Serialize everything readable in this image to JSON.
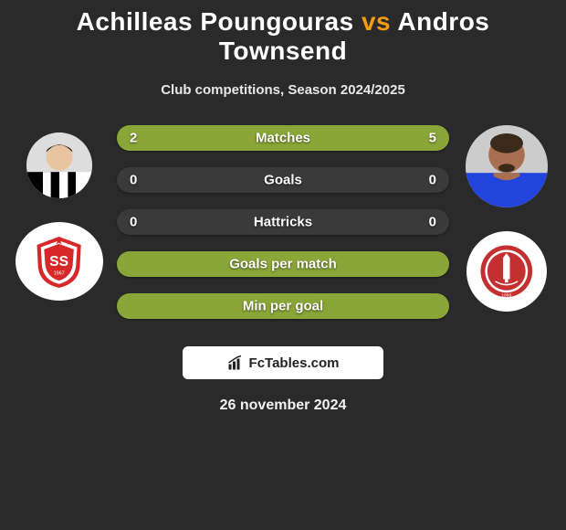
{
  "title": {
    "player1": "Achilleas Poungouras",
    "vs": "vs",
    "player2": "Andros Townsend"
  },
  "subtitle": "Club competitions, Season 2024/2025",
  "colors": {
    "background": "#2a2a2a",
    "bar_track": "#3a3a3a",
    "bar_fill": "#8aa638",
    "accent": "#f39c12",
    "text": "#ffffff",
    "brand_bg": "#ffffff",
    "brand_text": "#222222"
  },
  "player_left": {
    "shirt_colors": [
      "#000000",
      "#ffffff"
    ],
    "skin": "#e8c4a0",
    "hair": "#1a1a1a",
    "team_badge": {
      "primary": "#d62828",
      "secondary": "#ffffff",
      "text": "SS",
      "year": "1967"
    }
  },
  "player_right": {
    "shirt_colors": [
      "#2244dd"
    ],
    "skin": "#a87050",
    "hair": "#3a2a1a",
    "team_badge": {
      "primary": "#c43030",
      "secondary": "#ffffff",
      "year": "1966"
    }
  },
  "bars": [
    {
      "label": "Matches",
      "left": "2",
      "right": "5",
      "left_pct": 28,
      "right_pct": 72,
      "show_values": true,
      "split": true
    },
    {
      "label": "Goals",
      "left": "0",
      "right": "0",
      "left_pct": 0,
      "right_pct": 0,
      "show_values": true,
      "split": false
    },
    {
      "label": "Hattricks",
      "left": "0",
      "right": "0",
      "left_pct": 0,
      "right_pct": 0,
      "show_values": true,
      "split": false
    },
    {
      "label": "Goals per match",
      "left": "",
      "right": "",
      "left_pct": 0,
      "right_pct": 0,
      "show_values": false,
      "split": false,
      "full": true
    },
    {
      "label": "Min per goal",
      "left": "",
      "right": "",
      "left_pct": 0,
      "right_pct": 0,
      "show_values": false,
      "split": false,
      "full": true
    }
  ],
  "typography": {
    "title_fontsize": 28,
    "subtitle_fontsize": 15,
    "bar_label_fontsize": 15,
    "date_fontsize": 16
  },
  "brand": "FcTables.com",
  "date": "26 november 2024"
}
